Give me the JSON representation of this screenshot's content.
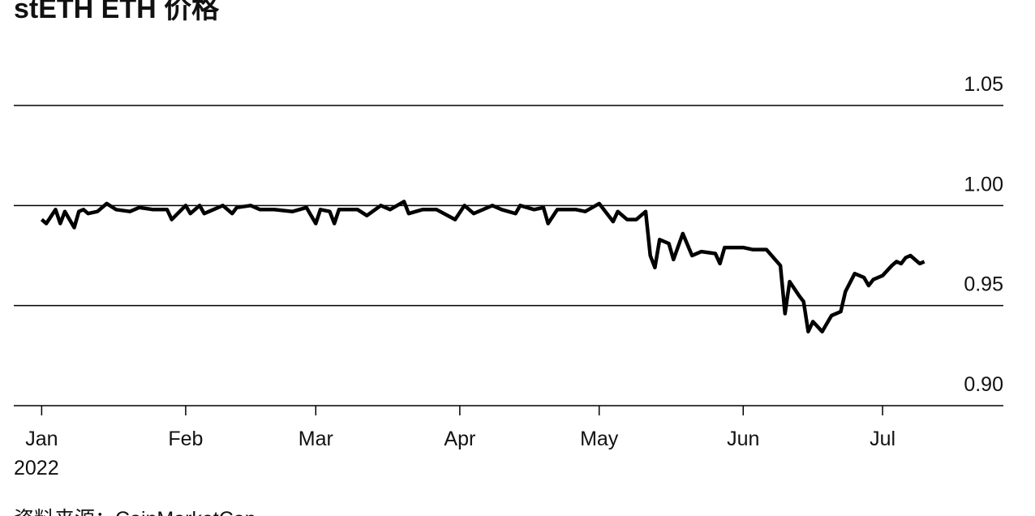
{
  "chart_data": {
    "type": "line",
    "title": "stETH ETH 价格",
    "source": "资料来源：CoinMarketCap",
    "x": [
      0,
      1,
      3,
      4,
      5,
      7,
      8,
      9,
      10,
      12,
      14,
      16,
      19,
      21,
      24,
      27,
      28,
      31,
      32,
      34,
      35,
      39,
      41,
      42,
      45,
      47,
      50,
      54,
      57,
      59,
      60,
      62,
      63,
      64,
      68,
      70,
      73,
      75,
      78,
      79,
      82,
      85,
      89,
      91,
      93,
      97,
      99,
      102,
      103,
      106,
      108,
      109,
      111,
      115,
      117,
      120,
      123,
      124,
      126,
      128,
      130,
      131,
      132,
      133,
      135,
      136,
      138,
      140,
      142,
      145,
      146,
      147,
      149,
      151,
      153,
      156,
      159,
      160,
      161,
      163,
      164,
      165,
      166,
      168,
      170,
      172,
      173,
      175,
      177,
      178,
      179,
      181,
      183,
      184,
      185,
      186,
      187,
      189,
      190
    ],
    "values": [
      0.993,
      0.991,
      0.998,
      0.991,
      0.997,
      0.989,
      0.997,
      0.998,
      0.996,
      0.997,
      1.001,
      0.998,
      0.997,
      0.999,
      0.998,
      0.998,
      0.993,
      1.0,
      0.996,
      1.0,
      0.996,
      1.0,
      0.996,
      0.999,
      1.0,
      0.998,
      0.998,
      0.997,
      0.999,
      0.991,
      0.998,
      0.997,
      0.991,
      0.998,
      0.998,
      0.995,
      1.0,
      0.998,
      1.002,
      0.996,
      0.998,
      0.998,
      0.993,
      1.0,
      0.996,
      1.0,
      0.998,
      0.996,
      1.0,
      0.998,
      0.999,
      0.991,
      0.998,
      0.998,
      0.997,
      1.001,
      0.992,
      0.997,
      0.993,
      0.993,
      0.997,
      0.975,
      0.969,
      0.983,
      0.981,
      0.973,
      0.986,
      0.975,
      0.977,
      0.976,
      0.971,
      0.979,
      0.979,
      0.979,
      0.978,
      0.978,
      0.97,
      0.946,
      0.962,
      0.955,
      0.952,
      0.937,
      0.942,
      0.937,
      0.945,
      0.947,
      0.957,
      0.966,
      0.964,
      0.96,
      0.963,
      0.965,
      0.97,
      0.972,
      0.971,
      0.974,
      0.975,
      0.971,
      0.972
    ],
    "color": "#000000",
    "xlim": [
      -6,
      207
    ],
    "xticks": [
      {
        "value": 0,
        "label": "Jan"
      },
      {
        "value": 31,
        "label": "Feb"
      },
      {
        "value": 59,
        "label": "Mar"
      },
      {
        "value": 90,
        "label": "Apr"
      },
      {
        "value": 120,
        "label": "May"
      },
      {
        "value": 151,
        "label": "Jun"
      },
      {
        "value": 181,
        "label": "Jul"
      }
    ],
    "x_year_label": "2022",
    "ylim": [
      0.9,
      1.05
    ],
    "yticks": [
      {
        "value": 0.9,
        "label": "0.90"
      },
      0.95,
      {
        "value": 1,
        "label": "1.00"
      },
      1.05
    ],
    "grid": true
  }
}
